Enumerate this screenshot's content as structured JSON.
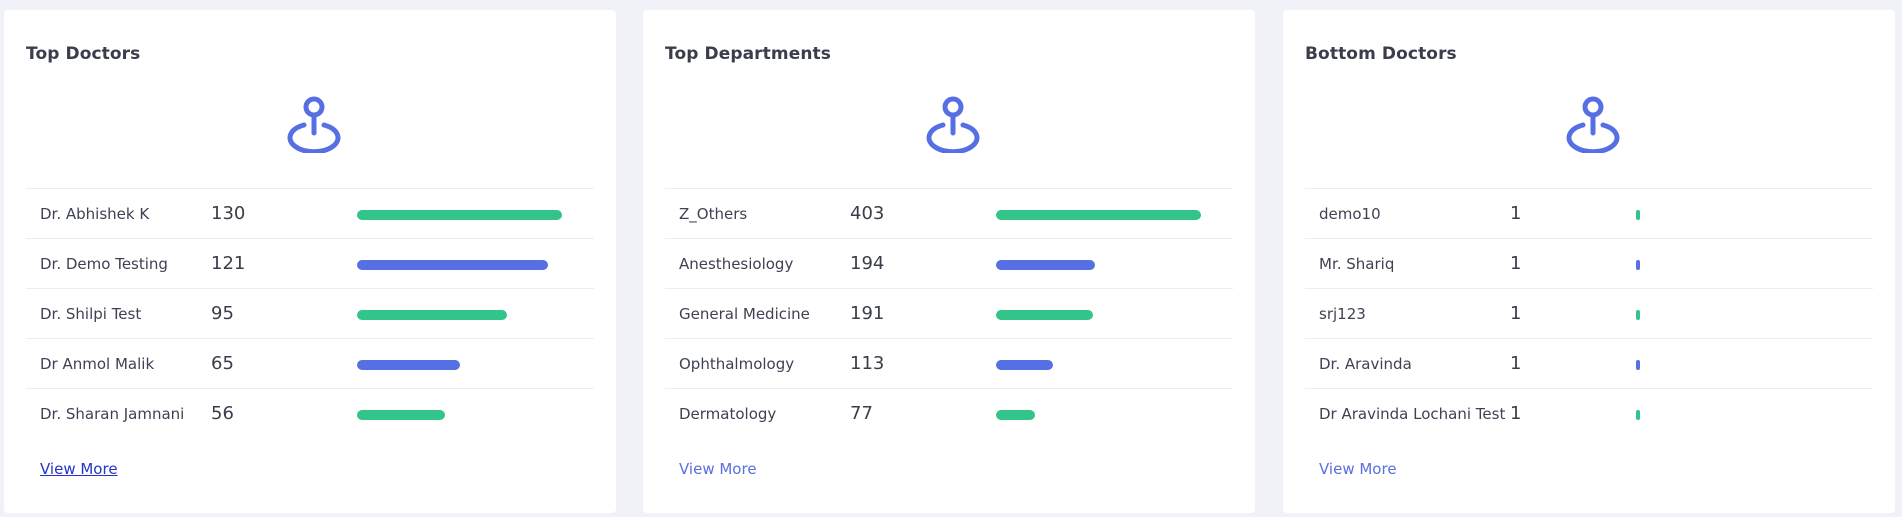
{
  "colors": {
    "green": "#33c48a",
    "blue": "#5670e3",
    "icon": "#5670e3"
  },
  "cards": [
    {
      "title": "Top Doctors",
      "icon": "location-pin-icon",
      "max": 130,
      "rows": [
        {
          "label": "Dr. Abhishek K",
          "value": 130
        },
        {
          "label": "Dr. Demo Testing",
          "value": 121
        },
        {
          "label": "Dr. Shilpi Test",
          "value": 95
        },
        {
          "label": "Dr Anmol Malik",
          "value": 65
        },
        {
          "label": "Dr. Sharan Jamnani",
          "value": 56
        }
      ],
      "view_more": "View More"
    },
    {
      "title": "Top Departments",
      "icon": "location-pin-icon",
      "max": 403,
      "rows": [
        {
          "label": "Z_Others",
          "value": 403
        },
        {
          "label": "Anesthesiology",
          "value": 194
        },
        {
          "label": "General Medicine",
          "value": 191
        },
        {
          "label": "Ophthalmology",
          "value": 113
        },
        {
          "label": "Dermatology",
          "value": 77
        }
      ],
      "view_more": "View More"
    },
    {
      "title": "Bottom Doctors",
      "icon": "location-pin-icon",
      "max": 403,
      "rows": [
        {
          "label": "demo10",
          "value": 1
        },
        {
          "label": "Mr. Shariq",
          "value": 1
        },
        {
          "label": "srj123",
          "value": 1
        },
        {
          "label": "Dr. Aravinda",
          "value": 1
        },
        {
          "label": "Dr Aravinda Lochani Test",
          "value": 1
        }
      ],
      "view_more": "View More"
    }
  ]
}
